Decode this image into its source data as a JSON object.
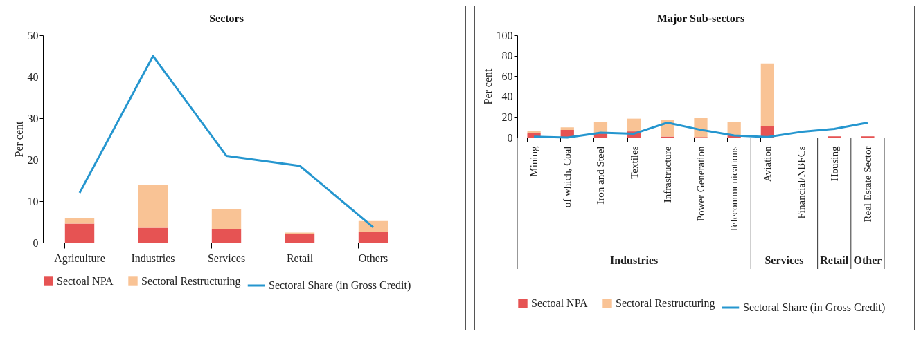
{
  "chart_data": [
    {
      "type": "bar",
      "title": "Sectors",
      "ylabel": "Per cent",
      "categories": [
        "Agriculture",
        "Industries",
        "Services",
        "Retail",
        "Others"
      ],
      "stacked": true,
      "ylim": [
        0,
        50
      ],
      "yticks": [
        0,
        10,
        20,
        30,
        40,
        50
      ],
      "grid": false,
      "legend": "bottom",
      "series": [
        {
          "name": "Sectoal NPA",
          "color": "#e65353",
          "values": [
            4.6,
            3.6,
            3.3,
            2.1,
            2.5
          ]
        },
        {
          "name": "Sectoral Restructuring",
          "color": "#f9c395",
          "values": [
            1.4,
            10.3,
            4.7,
            0.3,
            2.7
          ]
        },
        {
          "name": "Sectoral Share (in Gross Credit)",
          "type": "line",
          "color": "#2596cf",
          "values": [
            12,
            45,
            20.9,
            18.5,
            3.7
          ]
        }
      ]
    },
    {
      "type": "bar",
      "title": "Major Sub-sectors",
      "ylabel": "Per cent",
      "categories": [
        "Mining",
        "of which, Coal",
        "Iron and Steel",
        "Textiles",
        "Infrastructure",
        "Power Generation",
        "Telecommunications",
        "Aviation",
        "Financial/NBFCs",
        "Housing",
        "Real Estate Sector"
      ],
      "stacked": true,
      "ylim": [
        0,
        100
      ],
      "yticks": [
        0,
        20,
        40,
        60,
        80,
        100
      ],
      "grid": false,
      "legend": "bottom",
      "annotations": [
        "Industries",
        "Services",
        "Retail",
        "Other"
      ],
      "series": [
        {
          "name": "Sectoal NPA",
          "color": "#e65353",
          "values": [
            4,
            7.5,
            4,
            6,
            1,
            0.5,
            2.5,
            11,
            0,
            1.2,
            1.2
          ]
        },
        {
          "name": "Sectoral Restructuring",
          "color": "#f9c395",
          "values": [
            2,
            2.5,
            11.5,
            12.5,
            16.5,
            19,
            13,
            61.5,
            0,
            0,
            0
          ]
        },
        {
          "name": "Sectoral Share (in Gross Credit)",
          "type": "line",
          "color": "#2596cf",
          "values": [
            0.8,
            0,
            4.8,
            3.8,
            14.5,
            7.5,
            2,
            0.5,
            5.5,
            8.5,
            14.5
          ]
        }
      ]
    }
  ]
}
